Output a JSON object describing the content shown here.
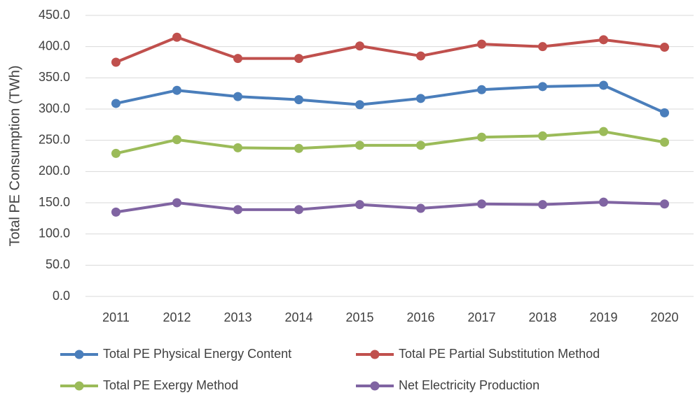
{
  "chart_data": {
    "type": "line",
    "y_label": "Total PE Consumption (TWh)",
    "categories": [
      "2011",
      "2012",
      "2013",
      "2014",
      "2015",
      "2016",
      "2017",
      "2018",
      "2019",
      "2020"
    ],
    "series": [
      {
        "name": "Total PE Physical Energy Content",
        "color": "#4a7ebb",
        "values": [
          309,
          330,
          320,
          315,
          307,
          317,
          331,
          336,
          338,
          294
        ]
      },
      {
        "name": "Total PE Partial Substitution Method",
        "color": "#c0504d",
        "values": [
          375,
          415,
          381,
          381,
          401,
          385,
          404,
          400,
          411,
          399
        ]
      },
      {
        "name": "Total PE Exergy Method",
        "color": "#9bbb59",
        "values": [
          229,
          251,
          238,
          237,
          242,
          242,
          255,
          257,
          264,
          247
        ]
      },
      {
        "name": "Net Electricity Production",
        "color": "#8064a2",
        "values": [
          135,
          150,
          139,
          139,
          147,
          141,
          148,
          147,
          151,
          148
        ]
      }
    ],
    "ylim": [
      0,
      450
    ],
    "yticks": [
      {
        "value": 0,
        "label": "0.0"
      },
      {
        "value": 50,
        "label": "50.0"
      },
      {
        "value": 100,
        "label": "100.0"
      },
      {
        "value": 150,
        "label": "150.0"
      },
      {
        "value": 200,
        "label": "200.0"
      },
      {
        "value": 250,
        "label": "250.0"
      },
      {
        "value": 300,
        "label": "300.0"
      },
      {
        "value": 350,
        "label": "350.0"
      },
      {
        "value": 400,
        "label": "400.0"
      },
      {
        "value": 450,
        "label": "450.0"
      }
    ],
    "grid": true
  }
}
